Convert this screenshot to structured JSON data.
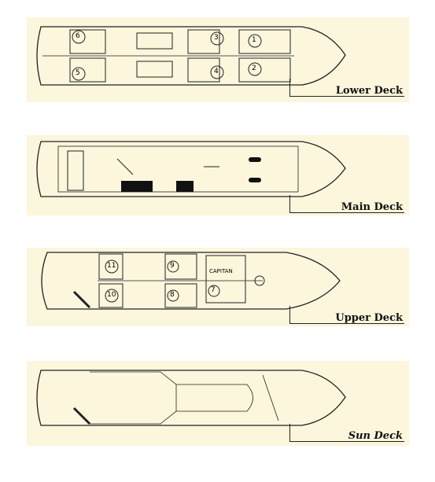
{
  "decks": [
    {
      "label": "Lower Deck",
      "cabins": [
        "1",
        "2",
        "3",
        "4",
        "5",
        "6"
      ]
    },
    {
      "label": "Main Deck",
      "cabins": []
    },
    {
      "label": "Upper Deck",
      "cabins": [
        "7",
        "8",
        "9",
        "10",
        "11"
      ],
      "room_label": "CAPITAN"
    },
    {
      "label": "Sun Deck",
      "cabins": []
    }
  ],
  "colors": {
    "deck_bg": "#fbf6dc",
    "line": "#222222",
    "furniture": "#111111"
  }
}
